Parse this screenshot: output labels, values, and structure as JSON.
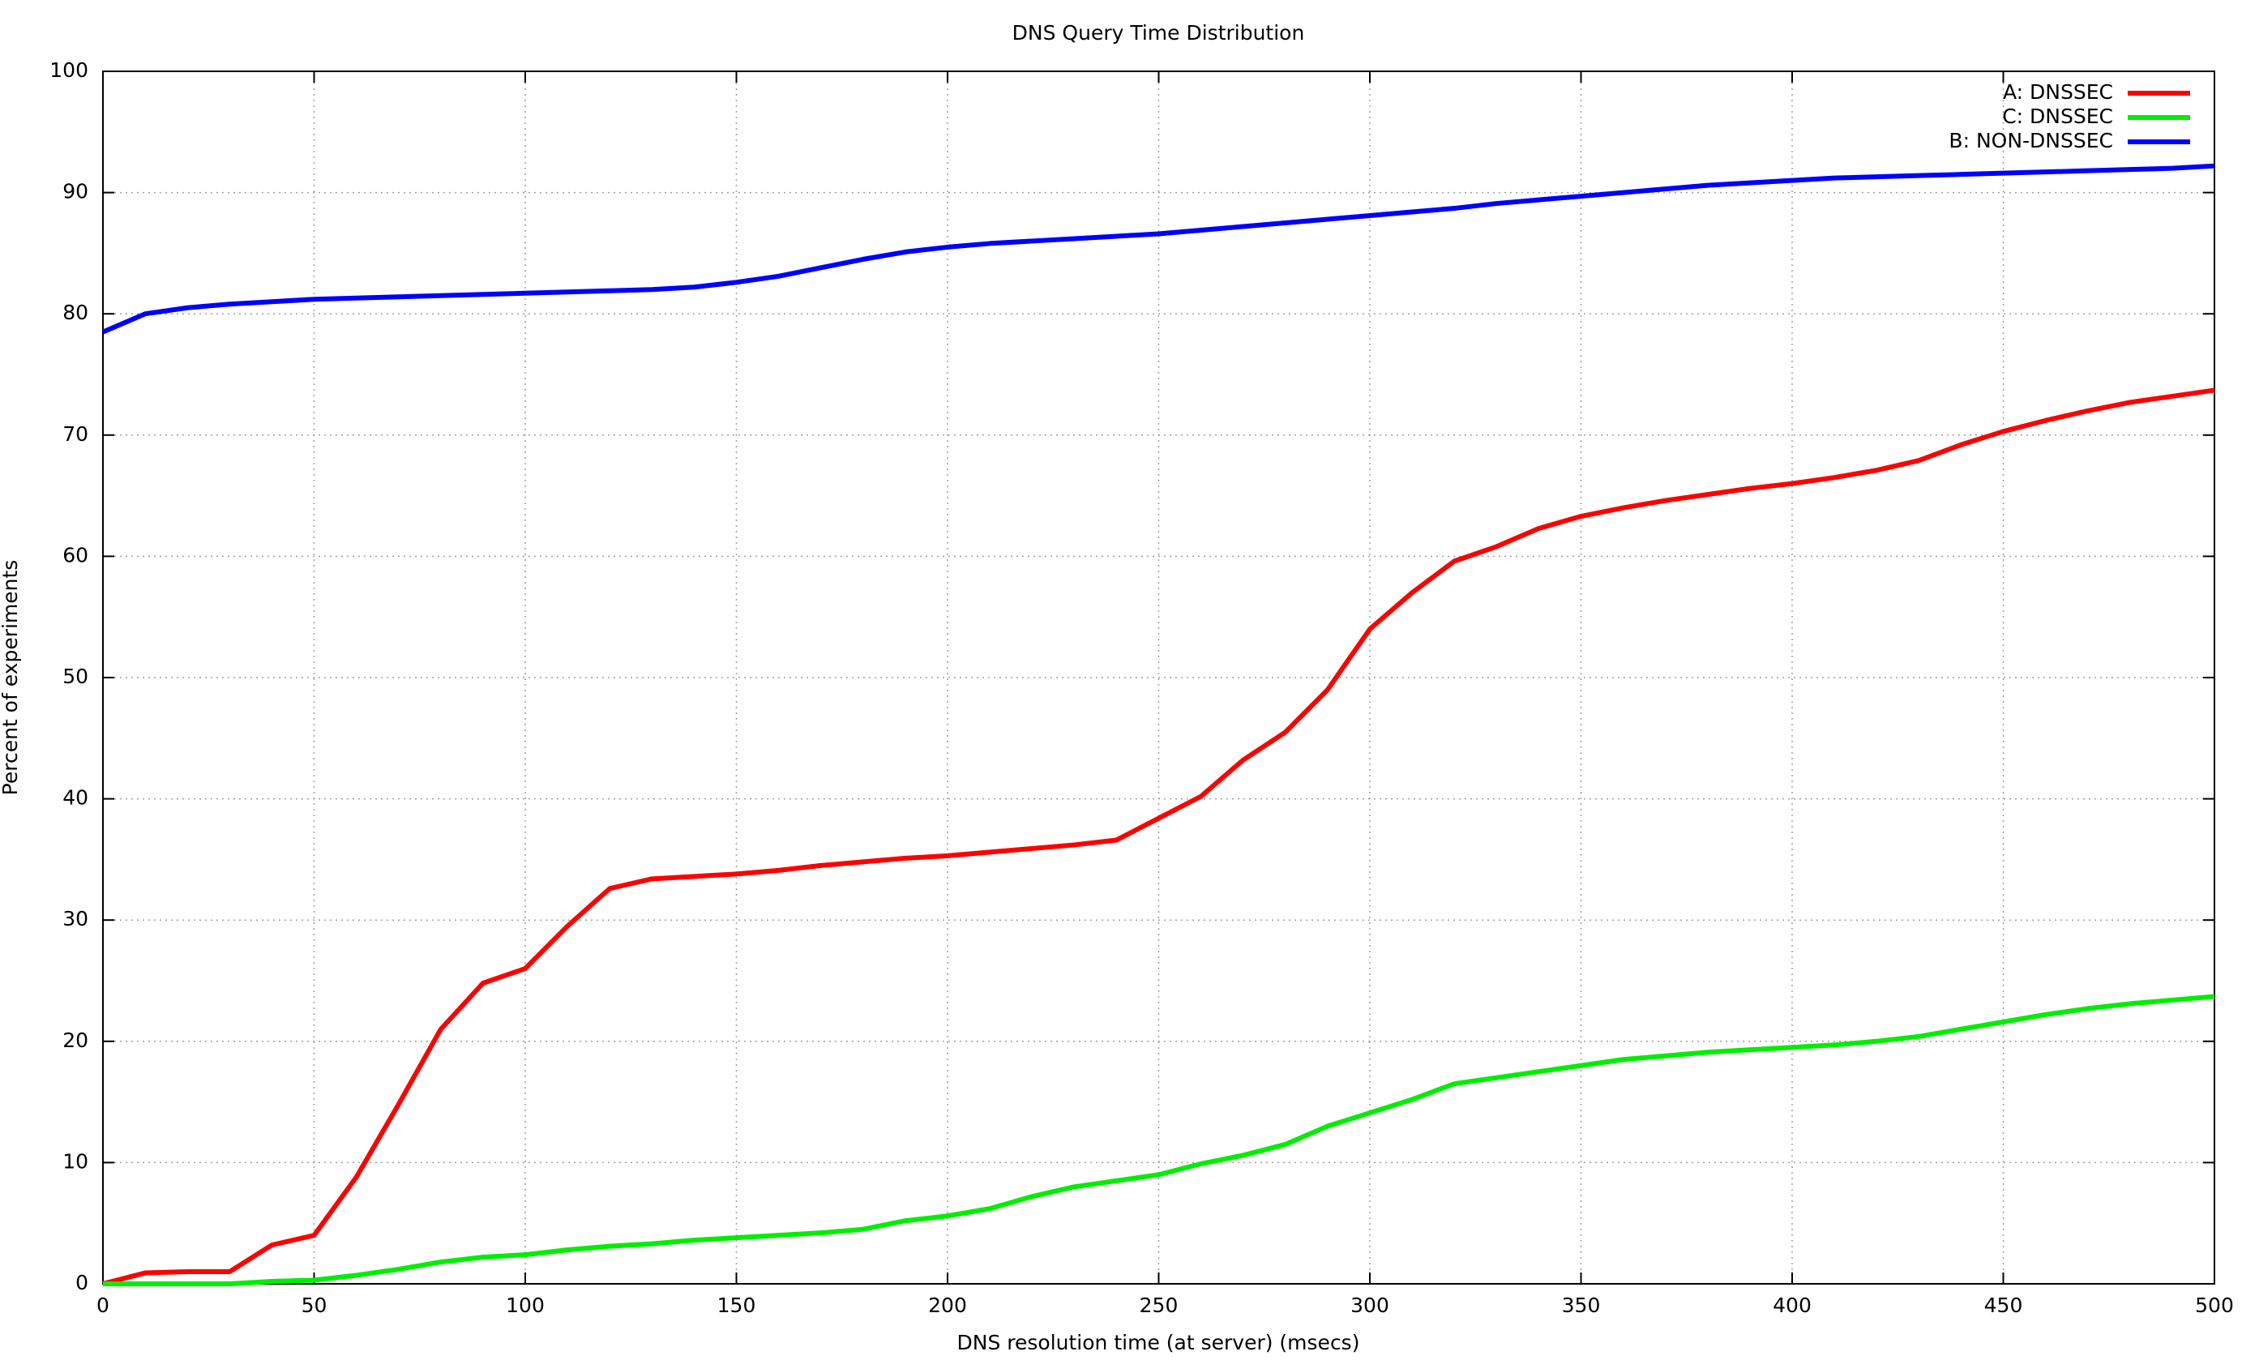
{
  "chart_data": {
    "type": "line",
    "title": "DNS Query Time Distribution",
    "xlabel": "DNS resolution time (at server) (msecs)",
    "ylabel": "Percent of experiments",
    "x": [
      0,
      10,
      20,
      30,
      40,
      50,
      60,
      70,
      80,
      90,
      100,
      110,
      120,
      130,
      140,
      150,
      160,
      170,
      180,
      190,
      200,
      210,
      220,
      230,
      240,
      250,
      260,
      270,
      280,
      290,
      300,
      310,
      320,
      330,
      340,
      350,
      360,
      370,
      380,
      390,
      400,
      410,
      420,
      430,
      440,
      450,
      460,
      470,
      480,
      490,
      500
    ],
    "series": [
      {
        "name": "A: DNSSEC",
        "color": "#ff0000",
        "values": [
          0,
          0.9,
          1.0,
          1.0,
          3.2,
          4.0,
          8.8,
          14.8,
          21.0,
          24.8,
          26.0,
          29.5,
          32.6,
          33.4,
          33.6,
          33.8,
          34.1,
          34.5,
          34.8,
          35.1,
          35.3,
          35.6,
          35.9,
          36.2,
          36.6,
          38.4,
          40.2,
          43.2,
          45.5,
          49.0,
          54.0,
          57.0,
          59.6,
          60.8,
          62.3,
          63.3,
          64.0,
          64.6,
          65.1,
          65.6,
          66.0,
          66.5,
          67.1,
          67.9,
          69.2,
          70.3,
          71.2,
          72.0,
          72.7,
          73.2,
          73.7
        ]
      },
      {
        "name": "C: DNSSEC",
        "color": "#00ee00",
        "values": [
          0,
          0,
          0,
          0,
          0.2,
          0.3,
          0.7,
          1.2,
          1.8,
          2.2,
          2.4,
          2.8,
          3.1,
          3.3,
          3.6,
          3.8,
          4.0,
          4.2,
          4.5,
          5.2,
          5.6,
          6.2,
          7.2,
          8.0,
          8.5,
          9.0,
          9.9,
          10.6,
          11.5,
          13.0,
          14.1,
          15.2,
          16.5,
          17.0,
          17.5,
          18.0,
          18.5,
          18.8,
          19.1,
          19.3,
          19.5,
          19.7,
          20.0,
          20.4,
          21.0,
          21.6,
          22.2,
          22.7,
          23.1,
          23.4,
          23.7
        ]
      },
      {
        "name": "B: NON-DNSSEC",
        "color": "#0000ff",
        "values": [
          78.5,
          80.0,
          80.5,
          80.8,
          81.0,
          81.2,
          81.3,
          81.4,
          81.5,
          81.6,
          81.7,
          81.8,
          81.9,
          82.0,
          82.2,
          82.6,
          83.1,
          83.8,
          84.5,
          85.1,
          85.5,
          85.8,
          86.0,
          86.2,
          86.4,
          86.6,
          86.9,
          87.2,
          87.5,
          87.8,
          88.1,
          88.4,
          88.7,
          89.1,
          89.4,
          89.7,
          90.0,
          90.3,
          90.6,
          90.8,
          91.0,
          91.2,
          91.3,
          91.4,
          91.5,
          91.6,
          91.7,
          91.8,
          91.9,
          92.0,
          92.2
        ]
      }
    ],
    "xlim": [
      0,
      500
    ],
    "xticks": [
      0,
      50,
      100,
      150,
      200,
      250,
      300,
      350,
      400,
      450,
      500
    ],
    "ylim": [
      0,
      100
    ],
    "yticks": [
      0,
      10,
      20,
      30,
      40,
      50,
      60,
      70,
      80,
      90,
      100
    ],
    "grid": true,
    "legend": "top-right"
  }
}
